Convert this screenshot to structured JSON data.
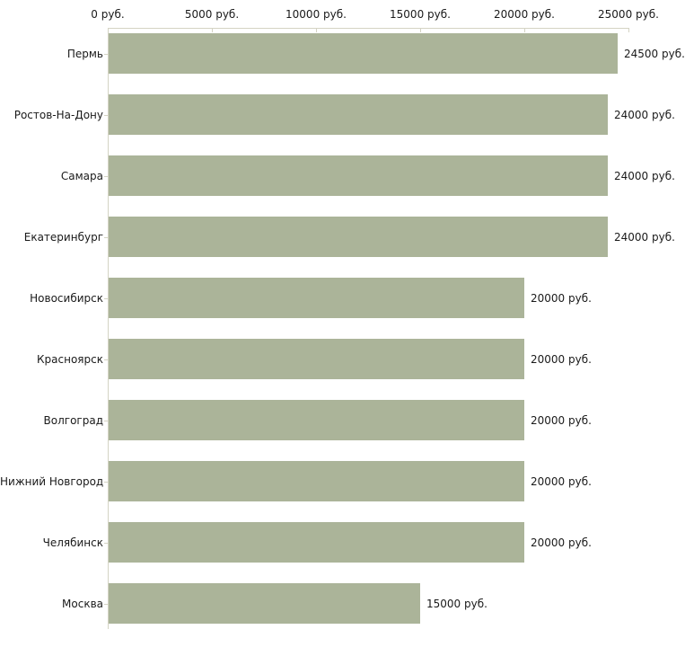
{
  "chart_data": {
    "type": "bar",
    "orientation": "horizontal",
    "title": "",
    "xlabel": "",
    "ylabel": "",
    "grid": false,
    "legend": false,
    "categories": [
      "Пермь",
      "Ростов-На-Дону",
      "Самара",
      "Екатеринбург",
      "Новосибирск",
      "Красноярск",
      "Волгоград",
      "Нижний Новгород",
      "Челябинск",
      "Москва"
    ],
    "values": [
      24500,
      24000,
      24000,
      24000,
      20000,
      20000,
      20000,
      20000,
      20000,
      15000
    ],
    "value_labels": [
      "24500 руб.",
      "24000 руб.",
      "24000 руб.",
      "24000 руб.",
      "20000 руб.",
      "20000 руб.",
      "20000 руб.",
      "20000 руб.",
      "20000 руб.",
      "15000 руб."
    ],
    "x_axis": {
      "position": "top",
      "range": [
        0,
        25000
      ],
      "ticks": [
        0,
        5000,
        10000,
        15000,
        20000,
        25000
      ],
      "tick_labels": [
        "0 руб.",
        "5000 руб.",
        "10000 руб.",
        "15000 руб.",
        "20000 руб.",
        "25000 руб."
      ]
    },
    "colors": {
      "bar": "#abb499",
      "axis": "#d4d3c4",
      "text": "#1a1a1a",
      "background": "#ffffff"
    }
  }
}
